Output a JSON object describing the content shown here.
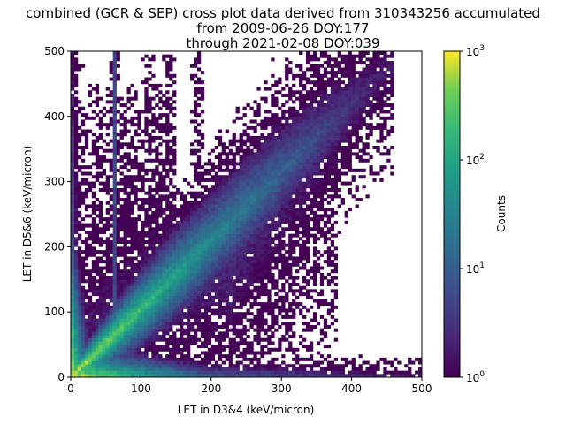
{
  "chart_data": {
    "type": "heatmap",
    "title_lines": [
      "combined (GCR & SEP) cross plot data derived from 310343256 accumulated",
      "from 2009-06-26 DOY:177",
      "through 2021-02-08 DOY:039"
    ],
    "xlabel": "LET in D3&4 (keV/micron)",
    "ylabel": "LET in D5&6 (keV/micron)",
    "xlim": [
      0,
      500
    ],
    "ylim": [
      0,
      500
    ],
    "xticks": [
      0,
      100,
      200,
      300,
      400,
      500
    ],
    "yticks": [
      0,
      100,
      200,
      300,
      400,
      500
    ],
    "bin_size": 5,
    "colorbar": {
      "label": "Counts",
      "scale": "log",
      "range": [
        1,
        1000
      ],
      "ticks": [
        {
          "base": "10",
          "exp": "0",
          "value": 1
        },
        {
          "base": "10",
          "exp": "1",
          "value": 10
        },
        {
          "base": "10",
          "exp": "2",
          "value": 100
        },
        {
          "base": "10",
          "exp": "3",
          "value": 1000
        }
      ],
      "colormap": "viridis"
    },
    "density_features_log10_counts": {
      "diagonal_band_y_equals_x": {
        "peak": 3.0,
        "at_x": 10,
        "level_at_200": 1.6,
        "level_at_350": 0.8,
        "end_x": 420
      },
      "horizontal_band_low_y": {
        "y_max": 25,
        "peak": 3.0,
        "level_at_200": 1.0,
        "level_at_500": 0.3
      },
      "vertical_band_low_x": {
        "x_max": 12,
        "peak": 3.0,
        "level_at_200": 0.9,
        "level_at_500": 0.3
      },
      "vertical_streak": {
        "x": 62,
        "level": 0.9
      },
      "secondary_streaks_x": [
        110,
        140,
        180
      ]
    }
  }
}
